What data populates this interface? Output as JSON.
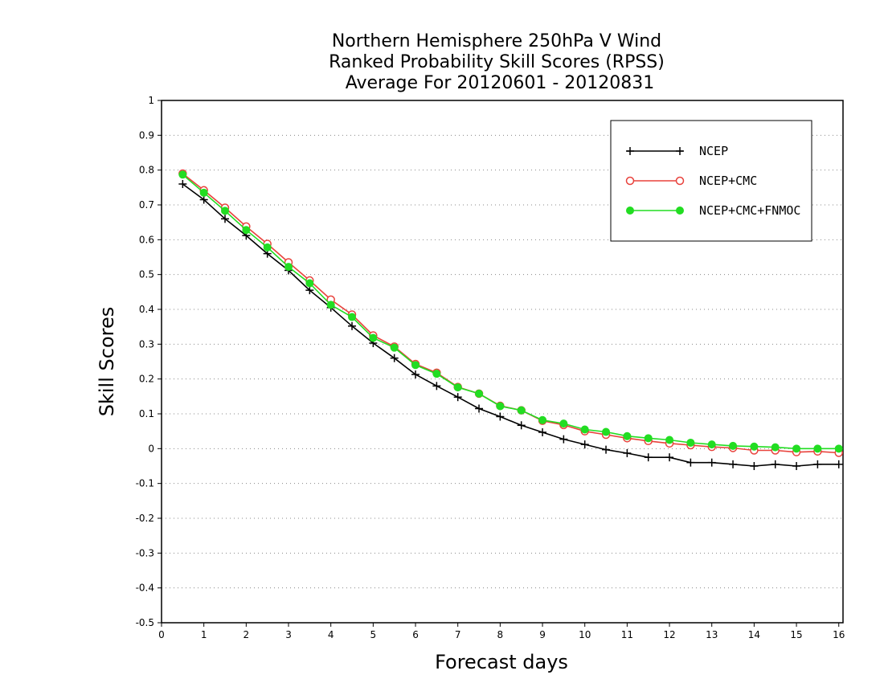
{
  "chart_data": {
    "type": "line",
    "title": [
      "Northern Hemisphere 250hPa V Wind",
      "Ranked Probability Skill Scores (RPSS)",
      "Average For 20120601 - 20120831"
    ],
    "xlabel": "Forecast days",
    "ylabel": "Skill Scores",
    "xlim": [
      0,
      16.1
    ],
    "ylim": [
      -0.5,
      1
    ],
    "xticks": [
      "0",
      "1",
      "2",
      "3",
      "4",
      "5",
      "6",
      "7",
      "8",
      "9",
      "10",
      "11",
      "12",
      "13",
      "14",
      "15",
      "16"
    ],
    "yticks": [
      "1",
      "0.9",
      "0.8",
      "0.7",
      "0.6",
      "0.5",
      "0.4",
      "0.3",
      "0.2",
      "0.1",
      "0",
      "-0.1",
      "-0.2",
      "-0.3",
      "-0.4",
      "-0.5"
    ],
    "ytick_values": [
      1,
      0.9,
      0.8,
      0.7,
      0.6,
      0.5,
      0.4,
      0.3,
      0.2,
      0.1,
      0,
      -0.1,
      -0.2,
      -0.3,
      -0.4,
      -0.5
    ],
    "grid": true,
    "legend_position": "top-right",
    "x": [
      0.5,
      1,
      1.5,
      2,
      2.5,
      3,
      3.5,
      4,
      4.5,
      5,
      5.5,
      6,
      6.5,
      7,
      7.5,
      8,
      8.5,
      9,
      9.5,
      10,
      10.5,
      11,
      11.5,
      12,
      12.5,
      13,
      13.5,
      14,
      14.5,
      15,
      15.5,
      16
    ],
    "series": [
      {
        "name": "NCEP",
        "color": "#000000",
        "marker": "plus",
        "values": [
          0.76,
          0.715,
          0.66,
          0.612,
          0.56,
          0.512,
          0.455,
          0.405,
          0.352,
          0.303,
          0.26,
          0.213,
          0.18,
          0.148,
          0.115,
          0.092,
          0.067,
          0.047,
          0.027,
          0.012,
          -0.003,
          -0.013,
          -0.025,
          -0.025,
          -0.04,
          -0.04,
          -0.045,
          -0.05,
          -0.045,
          -0.05,
          -0.045,
          -0.045
        ]
      },
      {
        "name": "NCEP+CMC",
        "color": "#e8423c",
        "marker": "open-circle",
        "values": [
          0.79,
          0.742,
          0.692,
          0.638,
          0.588,
          0.535,
          0.483,
          0.428,
          0.385,
          0.325,
          0.293,
          0.243,
          0.218,
          0.177,
          0.158,
          0.123,
          0.11,
          0.08,
          0.068,
          0.05,
          0.04,
          0.03,
          0.022,
          0.015,
          0.01,
          0.005,
          0.002,
          -0.005,
          -0.005,
          -0.01,
          -0.008,
          -0.012
        ]
      },
      {
        "name": "NCEP+CMC+FNMOC",
        "color": "#22dd22",
        "marker": "filled-circle",
        "values": [
          0.787,
          0.735,
          0.683,
          0.628,
          0.578,
          0.522,
          0.475,
          0.413,
          0.378,
          0.318,
          0.29,
          0.24,
          0.215,
          0.176,
          0.158,
          0.122,
          0.11,
          0.082,
          0.072,
          0.055,
          0.048,
          0.036,
          0.03,
          0.025,
          0.017,
          0.012,
          0.008,
          0.006,
          0.004,
          0.0,
          0.0,
          0.0
        ]
      }
    ]
  }
}
